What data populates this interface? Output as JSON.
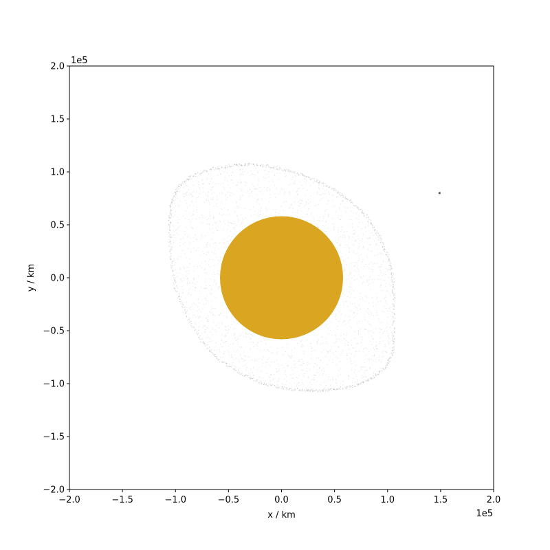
{
  "chart_data": {
    "type": "scatter",
    "xlabel": "x / km",
    "ylabel": "y / km",
    "xlim": [
      -200000,
      200000
    ],
    "ylim": [
      -200000,
      200000
    ],
    "x_offset_text": "1e5",
    "y_offset_text": "1e5",
    "x_ticks": [
      {
        "value": -200000,
        "label": "−2.0"
      },
      {
        "value": -150000,
        "label": "−1.5"
      },
      {
        "value": -100000,
        "label": "−1.0"
      },
      {
        "value": -50000,
        "label": "−0.5"
      },
      {
        "value": 0,
        "label": "0.0"
      },
      {
        "value": 50000,
        "label": "0.5"
      },
      {
        "value": 100000,
        "label": "1.0"
      },
      {
        "value": 150000,
        "label": "1.5"
      },
      {
        "value": 200000,
        "label": "2.0"
      }
    ],
    "y_ticks": [
      {
        "value": -200000,
        "label": "−2.0"
      },
      {
        "value": -150000,
        "label": "−1.5"
      },
      {
        "value": -100000,
        "label": "−1.0"
      },
      {
        "value": -50000,
        "label": "−0.5"
      },
      {
        "value": 0,
        "label": "0.0"
      },
      {
        "value": 50000,
        "label": "0.5"
      },
      {
        "value": 100000,
        "label": "1.0"
      },
      {
        "value": 150000,
        "label": "1.5"
      },
      {
        "value": 200000,
        "label": "2.0"
      }
    ],
    "grid": false,
    "central_body": {
      "center": [
        0,
        0
      ],
      "radius": 58000,
      "color": "#daa520"
    },
    "particle_cloud": {
      "color": "#b0b0b0",
      "outline": [
        [
          -45000,
          106000
        ],
        [
          -30000,
          107000
        ],
        [
          -10000,
          105000
        ],
        [
          10000,
          100000
        ],
        [
          30000,
          93000
        ],
        [
          50000,
          83000
        ],
        [
          65000,
          72000
        ],
        [
          80000,
          58000
        ],
        [
          92000,
          40000
        ],
        [
          100000,
          20000
        ],
        [
          105000,
          0
        ],
        [
          106000,
          -20000
        ],
        [
          106000,
          -50000
        ],
        [
          105000,
          -70000
        ],
        [
          98000,
          -85000
        ],
        [
          85000,
          -95000
        ],
        [
          70000,
          -102000
        ],
        [
          50000,
          -105000
        ],
        [
          35000,
          -107000
        ],
        [
          20000,
          -106000
        ],
        [
          0,
          -104000
        ],
        [
          -20000,
          -99000
        ],
        [
          -40000,
          -90000
        ],
        [
          -60000,
          -77000
        ],
        [
          -75000,
          -60000
        ],
        [
          -90000,
          -35000
        ],
        [
          -100000,
          -10000
        ],
        [
          -104000,
          20000
        ],
        [
          -106000,
          50000
        ],
        [
          -104000,
          70000
        ],
        [
          -98000,
          85000
        ],
        [
          -85000,
          96000
        ],
        [
          -65000,
          103000
        ]
      ]
    },
    "small_body": {
      "x": 149000,
      "y": 80000,
      "color": "#555555"
    }
  }
}
